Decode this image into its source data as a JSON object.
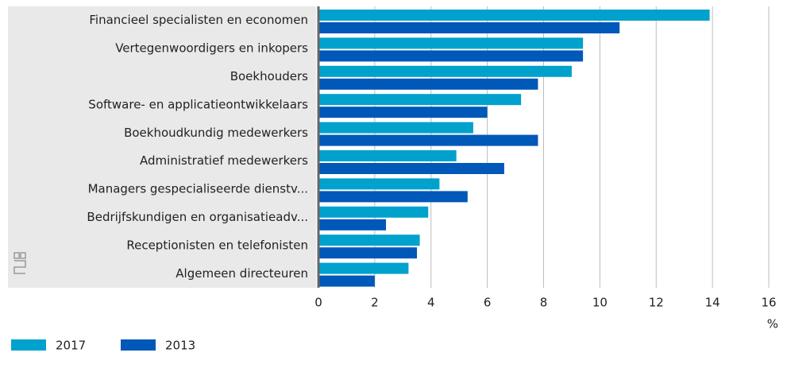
{
  "chart_data": {
    "type": "bar",
    "orientation": "horizontal",
    "categories": [
      "Financieel specialisten en economen",
      "Vertegenwoordigers en inkopers",
      "Boekhouders",
      "Software- en applicatieontwikkelaars",
      "Boekhoudkundig medewerkers",
      "Administratief medewerkers",
      "Managers gespecialiseerde dienstv...",
      "Bedrijfskundigen en organisatieadv...",
      "Receptionisten en telefonisten",
      "Algemeen directeuren"
    ],
    "series": [
      {
        "name": "2017",
        "color": "#00a1cd",
        "values": [
          13.9,
          9.4,
          9.0,
          7.2,
          5.5,
          4.9,
          4.3,
          3.9,
          3.6,
          3.2
        ]
      },
      {
        "name": "2013",
        "color": "#0058b8",
        "values": [
          10.7,
          9.4,
          7.8,
          6.0,
          7.8,
          6.6,
          5.3,
          2.4,
          3.5,
          2.0
        ]
      }
    ],
    "x_label": "%",
    "xlim": [
      0,
      16
    ],
    "xticks": [
      0,
      2,
      4,
      6,
      8,
      10,
      12,
      14,
      16
    ],
    "grid": true,
    "legend": "bottom"
  }
}
